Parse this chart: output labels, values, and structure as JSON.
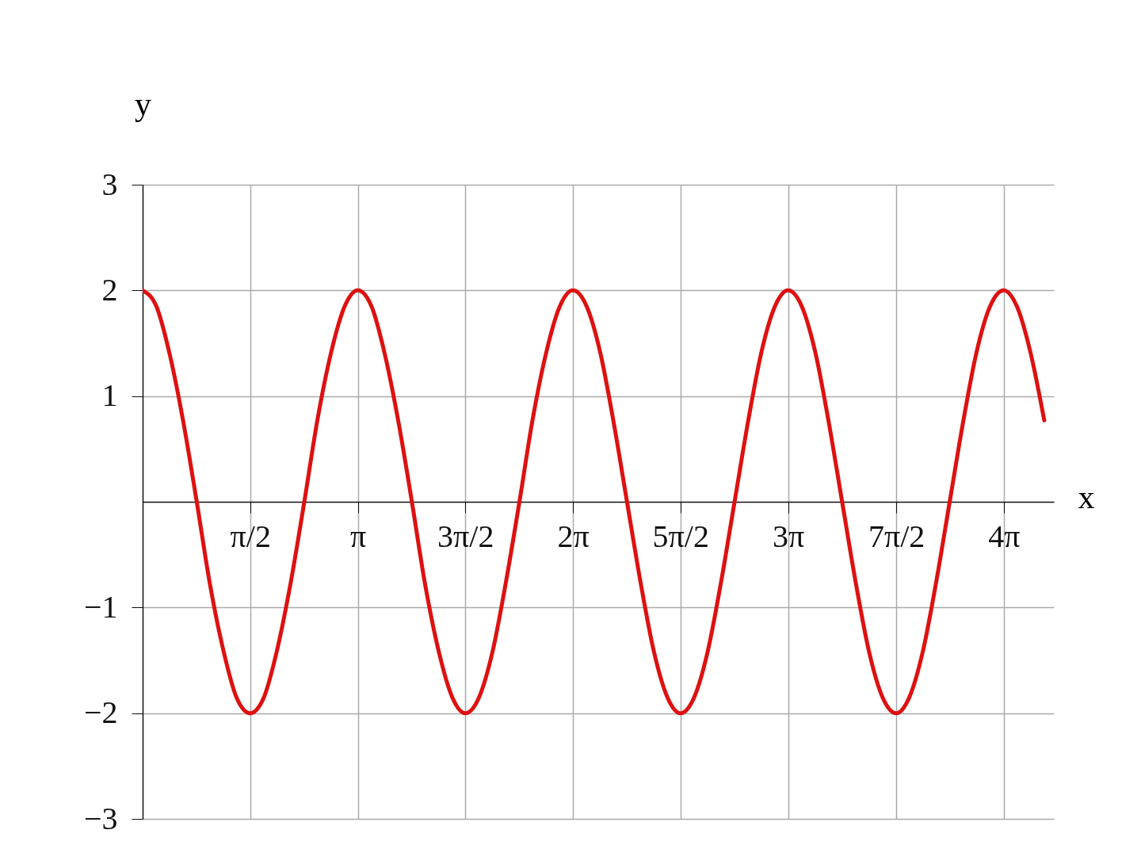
{
  "chart_data": {
    "type": "line",
    "xlabel": "x",
    "ylabel": "y",
    "x": [
      0,
      0.2,
      0.39,
      0.59,
      0.79,
      0.98,
      1.18,
      1.37,
      1.57,
      1.77,
      1.96,
      2.16,
      2.36,
      2.55,
      2.75,
      2.95,
      3.14,
      3.34,
      3.53,
      3.73,
      3.93,
      4.12,
      4.32,
      4.52,
      4.71,
      4.91,
      5.11,
      5.3,
      5.5,
      5.69,
      5.89,
      6.09,
      6.28,
      6.48,
      6.68,
      6.87,
      7.07,
      7.27,
      7.46,
      7.66,
      7.85,
      8.05,
      8.25,
      8.44,
      8.64,
      8.84,
      9.03,
      9.23,
      9.42,
      9.62,
      9.82,
      10.01,
      10.21,
      10.41,
      10.6,
      10.8,
      11,
      11.19,
      11.39,
      11.58,
      11.78,
      11.98,
      12.17,
      12.37,
      12.57,
      12.76,
      12.96,
      13.16
    ],
    "series": [
      {
        "color": "#dd1111",
        "values": [
          2,
          1.85,
          1.41,
          0.77,
          0,
          -0.77,
          -1.41,
          -1.85,
          -2,
          -1.85,
          -1.41,
          -0.77,
          0,
          0.77,
          1.41,
          1.85,
          2,
          1.85,
          1.41,
          0.77,
          0,
          -0.77,
          -1.41,
          -1.85,
          -2,
          -1.85,
          -1.41,
          -0.77,
          0,
          0.77,
          1.41,
          1.85,
          2,
          1.85,
          1.41,
          0.77,
          0,
          -0.77,
          -1.41,
          -1.85,
          -2,
          -1.85,
          -1.41,
          -0.77,
          0,
          0.77,
          1.41,
          1.85,
          2,
          1.85,
          1.41,
          0.77,
          0,
          -0.77,
          -1.41,
          -1.85,
          -2,
          -1.85,
          -1.41,
          -0.77,
          0,
          0.77,
          1.41,
          1.85,
          2,
          1.85,
          1.41,
          0.77
        ]
      }
    ],
    "xlim": [
      0,
      13.3
    ],
    "ylim": [
      -3,
      3
    ],
    "xticks": [
      {
        "value": 1.57,
        "label": "π/2"
      },
      {
        "value": 3.14,
        "label": "π"
      },
      {
        "value": 4.71,
        "label": "3π/2"
      },
      {
        "value": 6.28,
        "label": "2π"
      },
      {
        "value": 7.85,
        "label": "5π/2"
      },
      {
        "value": 9.42,
        "label": "3π"
      },
      {
        "value": 11,
        "label": "7π/2"
      },
      {
        "value": 12.57,
        "label": "4π"
      }
    ],
    "yticks": [
      -3,
      -2,
      -1,
      1,
      2,
      3
    ],
    "grid": true,
    "marker": "none",
    "line_style": "solid"
  }
}
